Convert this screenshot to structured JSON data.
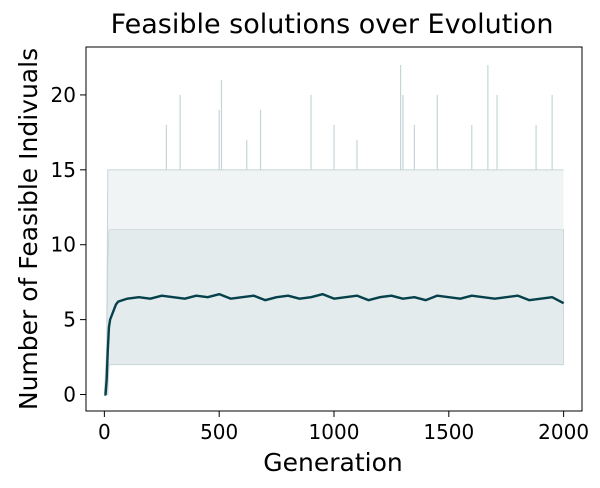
{
  "chart_data": {
    "type": "line",
    "title": "Feasible solutions over Evolution",
    "xlabel": "Generation",
    "ylabel": "Number of Feasible Indivuals",
    "xlim": [
      -80,
      2080
    ],
    "ylim": [
      -1.1,
      23.2
    ],
    "x_ticks": [
      0,
      500,
      1000,
      1500,
      2000
    ],
    "y_ticks": [
      0,
      5,
      10,
      15,
      20
    ],
    "grid": false,
    "legend": "none",
    "colors": {
      "mean_line": "#05404b",
      "band": "#e3ebec",
      "extremes": "#c6d5d8"
    },
    "series": [
      {
        "role": "mean",
        "x": [
          0,
          5,
          10,
          15,
          20,
          25,
          30,
          40,
          50,
          60,
          80,
          100,
          150,
          200,
          250,
          300,
          350,
          400,
          450,
          500,
          550,
          600,
          650,
          700,
          750,
          800,
          850,
          900,
          950,
          1000,
          1050,
          1100,
          1150,
          1200,
          1250,
          1300,
          1350,
          1400,
          1450,
          1500,
          1550,
          1600,
          1650,
          1700,
          1750,
          1800,
          1850,
          1900,
          1950,
          2000
        ],
        "y": [
          0,
          0,
          1,
          3,
          4.5,
          5,
          5.2,
          5.6,
          6,
          6.2,
          6.3,
          6.4,
          6.5,
          6.4,
          6.6,
          6.5,
          6.4,
          6.6,
          6.5,
          6.7,
          6.4,
          6.5,
          6.6,
          6.3,
          6.5,
          6.6,
          6.4,
          6.5,
          6.7,
          6.4,
          6.5,
          6.6,
          6.3,
          6.5,
          6.6,
          6.4,
          6.5,
          6.3,
          6.6,
          6.5,
          6.4,
          6.6,
          6.5,
          6.4,
          6.5,
          6.6,
          6.3,
          6.4,
          6.5,
          6.1
        ]
      },
      {
        "role": "band",
        "x": [
          0,
          10,
          15,
          20,
          2000
        ],
        "lower": [
          0,
          0,
          1,
          2,
          2
        ],
        "upper": [
          0,
          2,
          9,
          11,
          11
        ]
      }
    ],
    "extremes": {
      "x": [
        0,
        10,
        15,
        20,
        2000
      ],
      "min": [
        0,
        0,
        0,
        2,
        2
      ],
      "max": [
        0,
        3,
        15,
        15,
        15
      ],
      "spikes": [
        {
          "x": 270,
          "max": 18
        },
        {
          "x": 330,
          "max": 20
        },
        {
          "x": 500,
          "max": 19
        },
        {
          "x": 510,
          "max": 21
        },
        {
          "x": 620,
          "max": 17
        },
        {
          "x": 680,
          "max": 19
        },
        {
          "x": 900,
          "max": 20
        },
        {
          "x": 1000,
          "max": 18
        },
        {
          "x": 1100,
          "max": 17
        },
        {
          "x": 1290,
          "max": 22
        },
        {
          "x": 1300,
          "max": 20
        },
        {
          "x": 1350,
          "max": 18
        },
        {
          "x": 1450,
          "max": 20
        },
        {
          "x": 1600,
          "max": 18
        },
        {
          "x": 1670,
          "max": 22
        },
        {
          "x": 1710,
          "max": 20
        },
        {
          "x": 1880,
          "max": 18
        },
        {
          "x": 1950,
          "max": 20
        }
      ]
    }
  }
}
